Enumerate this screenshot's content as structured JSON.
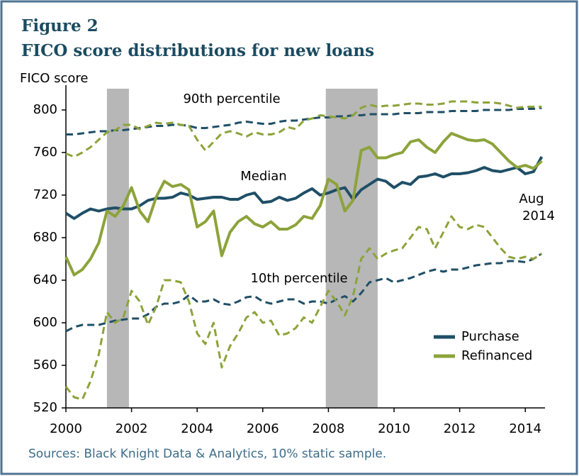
{
  "chart_data": {
    "type": "line",
    "title": [
      "Figure 2",
      "FICO score distributions for new loans"
    ],
    "y_label": "FICO score",
    "source": "Sources: Black Knight Data & Analytics, 10% static sample.",
    "annotations": [
      "90th percentile",
      "Median",
      "10th percentile",
      "Aug",
      "2014"
    ],
    "shaded_periods": [
      [
        2001.25,
        2001.92
      ],
      [
        2007.92,
        2009.5
      ]
    ],
    "xlim": [
      2000,
      2014.6
    ],
    "ylim": [
      520,
      820
    ],
    "xticks": [
      2000,
      2002,
      2004,
      2006,
      2008,
      2010,
      2012,
      2014
    ],
    "yticks": [
      520,
      560,
      600,
      640,
      680,
      720,
      760,
      800
    ],
    "x": [
      2000,
      2000.25,
      2000.5,
      2000.75,
      2001,
      2001.25,
      2001.5,
      2001.75,
      2002,
      2002.25,
      2002.5,
      2002.75,
      2003,
      2003.25,
      2003.5,
      2003.75,
      2004,
      2004.25,
      2004.5,
      2004.75,
      2005,
      2005.25,
      2005.5,
      2005.75,
      2006,
      2006.25,
      2006.5,
      2006.75,
      2007,
      2007.25,
      2007.5,
      2007.75,
      2008,
      2008.25,
      2008.5,
      2008.75,
      2009,
      2009.25,
      2009.5,
      2009.75,
      2010,
      2010.25,
      2010.5,
      2010.75,
      2011,
      2011.25,
      2011.5,
      2011.75,
      2012,
      2012.25,
      2012.5,
      2012.75,
      2013,
      2013.25,
      2013.5,
      2013.75,
      2014,
      2014.25,
      2014.5
    ],
    "series": [
      {
        "name": "Purchase",
        "color": "#1f4f66",
        "median": [
          703,
          698,
          703,
          707,
          705,
          707,
          708,
          707,
          707,
          710,
          715,
          717,
          717,
          718,
          722,
          720,
          716,
          717,
          718,
          718,
          716,
          716,
          720,
          722,
          713,
          714,
          718,
          715,
          717,
          722,
          726,
          720,
          722,
          725,
          727,
          716,
          725,
          730,
          735,
          733,
          727,
          732,
          730,
          737,
          738,
          740,
          737,
          740,
          740,
          741,
          743,
          746,
          743,
          742,
          744,
          746,
          740,
          742,
          756
        ],
        "p90": [
          777,
          777,
          778,
          779,
          780,
          780,
          781,
          781,
          782,
          783,
          784,
          785,
          785,
          786,
          786,
          785,
          783,
          783,
          784,
          785,
          786,
          788,
          789,
          788,
          787,
          787,
          789,
          790,
          790,
          791,
          792,
          793,
          793,
          794,
          794,
          795,
          795,
          796,
          796,
          796,
          796,
          797,
          797,
          797,
          798,
          798,
          798,
          799,
          799,
          799,
          799,
          800,
          800,
          800,
          800,
          801,
          801,
          801,
          802
        ],
        "p10": [
          592,
          596,
          598,
          598,
          598,
          600,
          602,
          603,
          604,
          604,
          608,
          615,
          618,
          618,
          620,
          626,
          620,
          620,
          622,
          618,
          617,
          620,
          624,
          625,
          620,
          618,
          620,
          622,
          622,
          618,
          620,
          620,
          618,
          622,
          625,
          620,
          628,
          638,
          640,
          642,
          638,
          640,
          642,
          645,
          648,
          650,
          648,
          650,
          650,
          652,
          654,
          655,
          656,
          656,
          658,
          658,
          657,
          660,
          665
        ]
      },
      {
        "name": "Refinanced",
        "color": "#8ca33a",
        "median": [
          662,
          645,
          650,
          660,
          675,
          705,
          700,
          710,
          727,
          705,
          695,
          718,
          733,
          728,
          730,
          725,
          690,
          695,
          705,
          663,
          685,
          695,
          700,
          693,
          690,
          695,
          688,
          688,
          692,
          700,
          698,
          710,
          735,
          730,
          705,
          715,
          762,
          765,
          755,
          755,
          758,
          760,
          770,
          772,
          765,
          760,
          770,
          778,
          775,
          772,
          771,
          772,
          768,
          760,
          752,
          746,
          748,
          745,
          752
        ],
        "p90": [
          759,
          756,
          760,
          765,
          772,
          779,
          781,
          786,
          786,
          782,
          785,
          788,
          787,
          788,
          786,
          785,
          772,
          762,
          770,
          778,
          780,
          778,
          775,
          779,
          777,
          777,
          779,
          784,
          782,
          790,
          792,
          795,
          794,
          793,
          792,
          795,
          802,
          805,
          803,
          804,
          804,
          805,
          806,
          806,
          805,
          805,
          806,
          808,
          808,
          808,
          807,
          807,
          807,
          806,
          804,
          802,
          803,
          803,
          803
        ],
        "p10": [
          540,
          530,
          528,
          545,
          570,
          610,
          600,
          605,
          630,
          620,
          598,
          615,
          640,
          640,
          638,
          620,
          590,
          580,
          600,
          558,
          578,
          590,
          605,
          610,
          600,
          602,
          588,
          590,
          595,
          605,
          600,
          615,
          630,
          620,
          607,
          625,
          660,
          670,
          660,
          665,
          668,
          670,
          680,
          690,
          688,
          670,
          685,
          700,
          690,
          688,
          692,
          690,
          680,
          670,
          662,
          660,
          662,
          660,
          665
        ]
      }
    ]
  }
}
